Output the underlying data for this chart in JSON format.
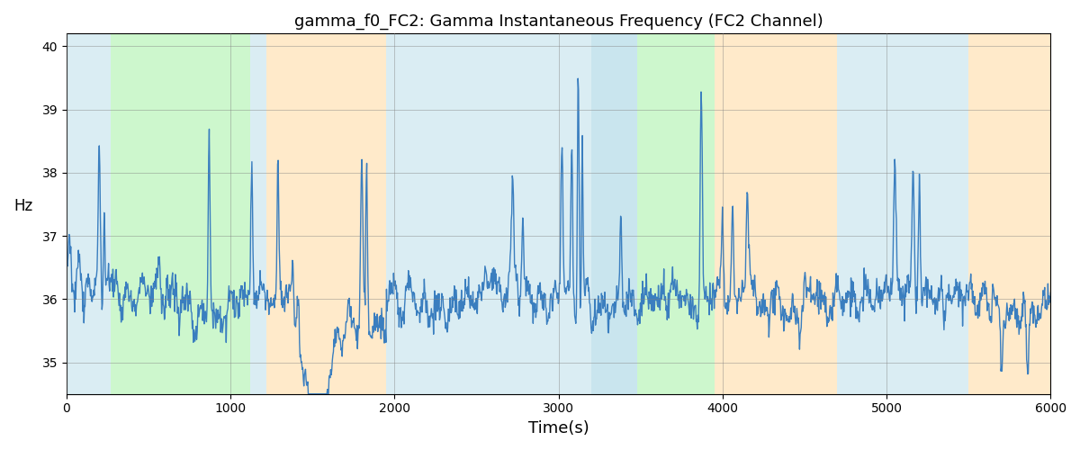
{
  "title": "gamma_f0_FC2: Gamma Instantaneous Frequency (FC2 Channel)",
  "xlabel": "Time(s)",
  "ylabel": "Hz",
  "xlim": [
    0,
    6000
  ],
  "ylim": [
    34.5,
    40.2
  ],
  "yticks": [
    35,
    36,
    37,
    38,
    39,
    40
  ],
  "xticks": [
    0,
    1000,
    2000,
    3000,
    4000,
    5000,
    6000
  ],
  "line_color": "#3a7ebf",
  "line_width": 1.0,
  "bg_regions": [
    {
      "xmin": 0,
      "xmax": 270,
      "color": "#add8e6",
      "alpha": 0.45
    },
    {
      "xmin": 270,
      "xmax": 1120,
      "color": "#90ee90",
      "alpha": 0.45
    },
    {
      "xmin": 1120,
      "xmax": 1220,
      "color": "#add8e6",
      "alpha": 0.45
    },
    {
      "xmin": 1220,
      "xmax": 1950,
      "color": "#ffd9a0",
      "alpha": 0.55
    },
    {
      "xmin": 1950,
      "xmax": 3200,
      "color": "#add8e6",
      "alpha": 0.45
    },
    {
      "xmin": 3200,
      "xmax": 3480,
      "color": "#add8e6",
      "alpha": 0.65
    },
    {
      "xmin": 3480,
      "xmax": 3950,
      "color": "#90ee90",
      "alpha": 0.45
    },
    {
      "xmin": 3950,
      "xmax": 4700,
      "color": "#ffd9a0",
      "alpha": 0.55
    },
    {
      "xmin": 4700,
      "xmax": 5500,
      "color": "#add8e6",
      "alpha": 0.45
    },
    {
      "xmin": 5500,
      "xmax": 6000,
      "color": "#ffd9a0",
      "alpha": 0.55
    }
  ],
  "n_points": 1800,
  "base_freq": 36.0,
  "noise_std": 0.28,
  "figsize": [
    12.0,
    5.0
  ],
  "dpi": 100
}
